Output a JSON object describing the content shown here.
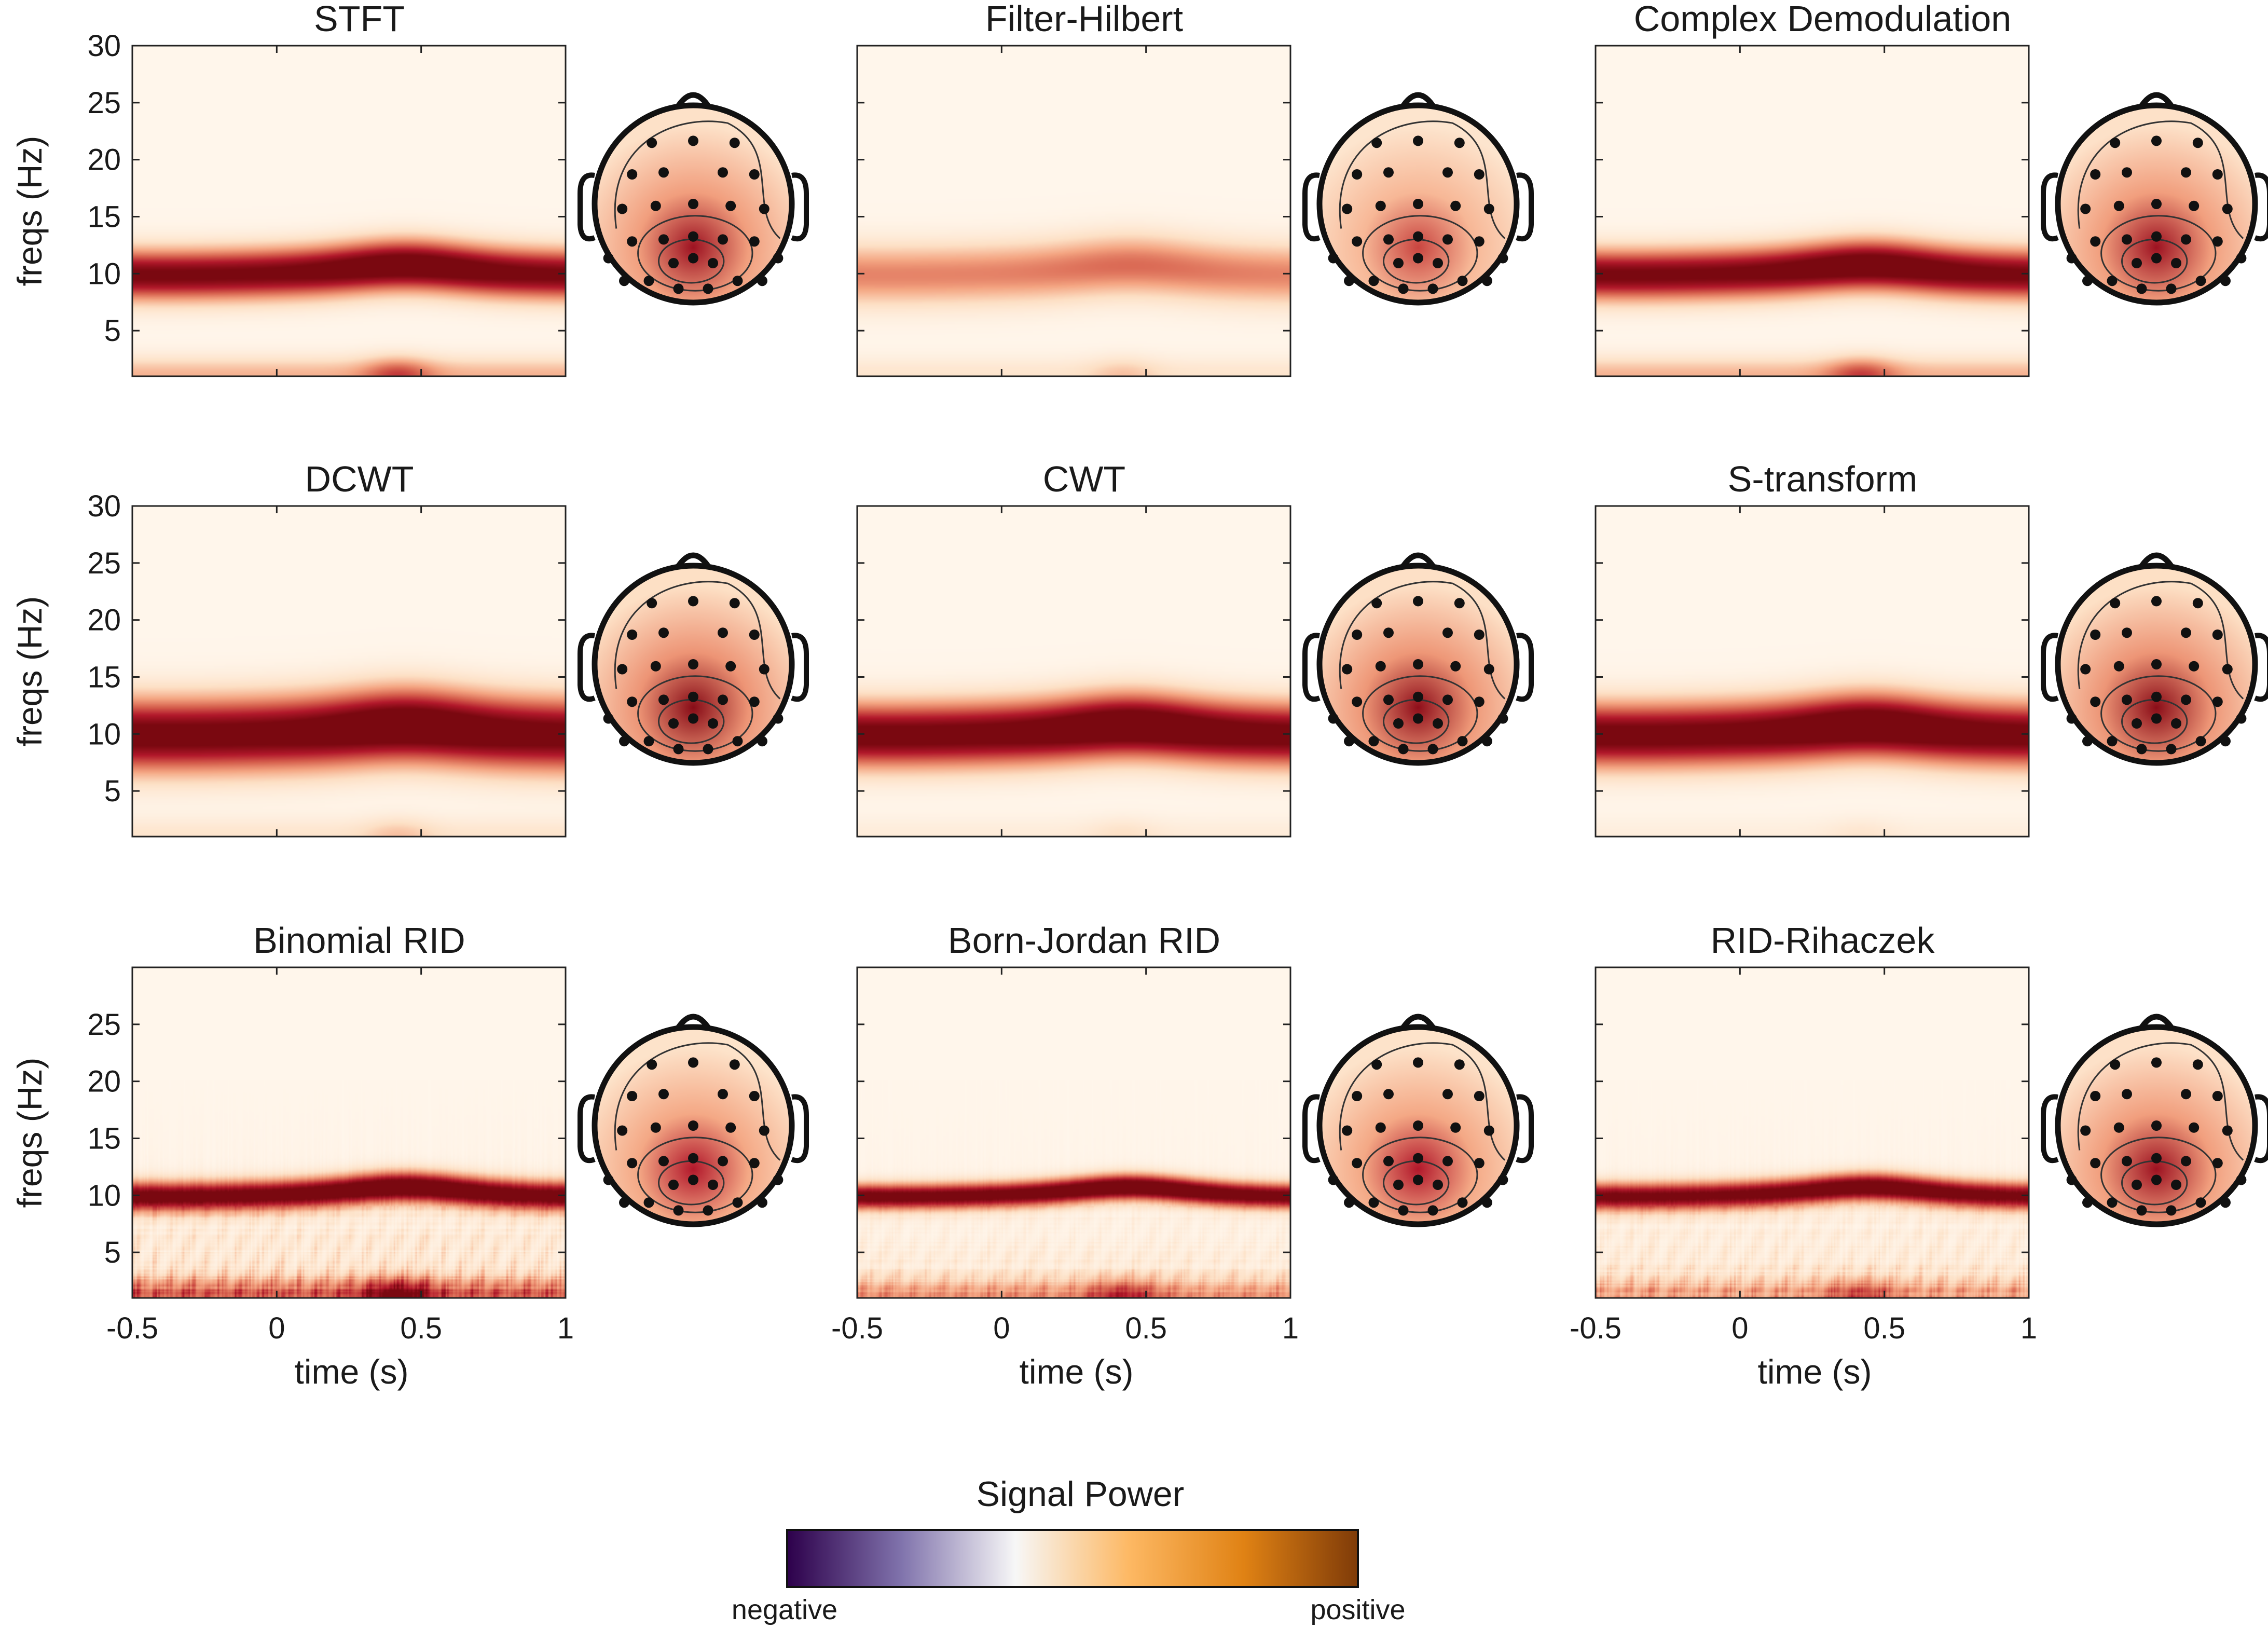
{
  "chart_data": {
    "type": "heatmap",
    "shared": {
      "x_ticks": [
        -0.5,
        0,
        0.5,
        1
      ],
      "x_tick_labels": [
        "-0.5",
        "0",
        "0.5",
        "1"
      ],
      "xlabel": "time (s)",
      "ylabel": "freqs (Hz)",
      "xlim": [
        -0.5,
        1
      ],
      "ylim": [
        1,
        30
      ],
      "y_ticks": [
        5,
        10,
        15,
        20,
        25,
        30
      ],
      "y_tick_labels": [
        "5",
        "10",
        "15",
        "20",
        "25",
        "30"
      ],
      "y_ticks_bottom_row": [
        5,
        10,
        15,
        20,
        25
      ],
      "y_tick_labels_bottom_row": [
        "5",
        "10",
        "15",
        "20",
        "25"
      ],
      "grid": false
    },
    "panels": [
      {
        "title": "STFT",
        "alpha_strength": 0.95,
        "low_freq_strength": 0.6,
        "noise": 0.0,
        "band_width": 2.2,
        "topo_peak": 0.85
      },
      {
        "title": "Filter-Hilbert",
        "alpha_strength": 0.45,
        "low_freq_strength": 0.25,
        "noise": 0.0,
        "band_width": 2.6,
        "topo_peak": 0.45
      },
      {
        "title": "Complex Demodulation",
        "alpha_strength": 0.95,
        "low_freq_strength": 0.6,
        "noise": 0.0,
        "band_width": 2.2,
        "topo_peak": 0.85
      },
      {
        "title": "DCWT",
        "alpha_strength": 1.0,
        "low_freq_strength": 0.25,
        "noise": 0.0,
        "band_width": 3.2,
        "topo_peak": 1.0
      },
      {
        "title": "CWT",
        "alpha_strength": 1.0,
        "low_freq_strength": 0.15,
        "noise": 0.0,
        "band_width": 2.8,
        "topo_peak": 0.95
      },
      {
        "title": "S-transform",
        "alpha_strength": 1.0,
        "low_freq_strength": 0.12,
        "noise": 0.0,
        "band_width": 2.8,
        "topo_peak": 0.98
      },
      {
        "title": "Binomial RID",
        "alpha_strength": 1.0,
        "low_freq_strength": 0.85,
        "noise": 0.7,
        "band_width": 1.3,
        "topo_peak": 0.7
      },
      {
        "title": "Born-Jordan RID",
        "alpha_strength": 1.0,
        "low_freq_strength": 0.6,
        "noise": 0.45,
        "band_width": 1.1,
        "topo_peak": 0.7
      },
      {
        "title": "RID-Rihaczek",
        "alpha_strength": 0.95,
        "low_freq_strength": 0.5,
        "noise": 0.55,
        "band_width": 1.2,
        "topo_peak": 0.85
      }
    ],
    "alpha_center_hz": 10,
    "colorbar": {
      "title": "Signal Power",
      "min_label": "negative",
      "max_label": "positive",
      "colors": [
        "#2d004b",
        "#8073ac",
        "#f7f7f7",
        "#fdb863",
        "#e08214",
        "#7f3b08"
      ]
    },
    "heatmap_colors": [
      "#fff8ef",
      "#fde0c5",
      "#f4a582",
      "#d6604d",
      "#b2182b",
      "#7a0810"
    ]
  }
}
